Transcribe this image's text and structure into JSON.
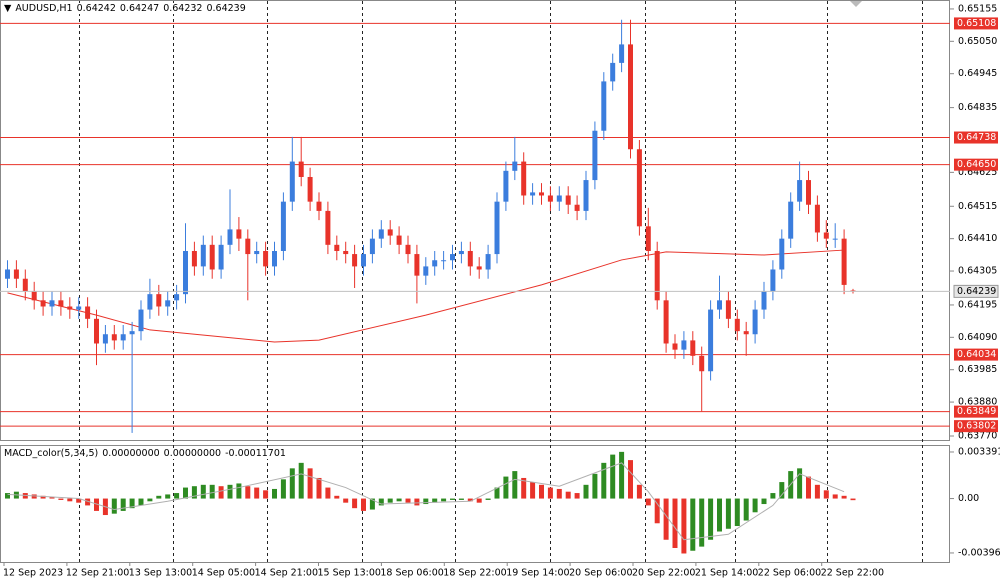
{
  "chart_data": {
    "type": "candlestick",
    "symbol": "AUDUSD,H1",
    "up_color": "#3b7ddd",
    "down_color": "#e8332a",
    "open": [
      0.6428,
      0.6431,
      0.6428,
      0.6424,
      0.6421,
      0.6419,
      0.6421,
      0.6419,
      0.6418,
      0.6419,
      0.6415,
      0.6407,
      0.641,
      0.6408,
      0.641,
      0.6411,
      0.6418,
      0.6423,
      0.6419,
      0.6421,
      0.6423,
      0.6437,
      0.6432,
      0.6439,
      0.6431,
      0.6439,
      0.6444,
      0.6441,
      0.6436,
      0.6437,
      0.6432,
      0.6437,
      0.6453,
      0.6466,
      0.6461,
      0.6453,
      0.645,
      0.6439,
      0.6437,
      0.6436,
      0.6432,
      0.6436,
      0.6441,
      0.6444,
      0.6442,
      0.6439,
      0.6436,
      0.6429,
      0.6432,
      0.6434,
      0.6434,
      0.6436,
      0.6437,
      0.6432,
      0.6431,
      0.6436,
      0.6453,
      0.6463,
      0.6466,
      0.6455,
      0.6456,
      0.6455,
      0.6453,
      0.6455,
      0.6452,
      0.645,
      0.646,
      0.6476,
      0.6492,
      0.6498,
      0.6504,
      0.647,
      0.6445,
      0.6437,
      0.6421,
      0.6407,
      0.6405,
      0.6408,
      0.6403,
      0.6398,
      0.6418,
      0.6421,
      0.6415,
      0.6411,
      0.641,
      0.6418,
      0.6424,
      0.6431,
      0.6441,
      0.6453,
      0.646,
      0.6452,
      0.6443,
      0.6441,
      0.6441,
      0.64242
    ],
    "high": [
      0.6434,
      0.6434,
      0.6431,
      0.6427,
      0.6424,
      0.6424,
      0.6424,
      0.6422,
      0.6422,
      0.6422,
      0.6418,
      0.6413,
      0.6413,
      0.6413,
      0.6414,
      0.6421,
      0.6428,
      0.6426,
      0.6424,
      0.6426,
      0.6446,
      0.644,
      0.6442,
      0.6442,
      0.6442,
      0.6457,
      0.6448,
      0.6444,
      0.644,
      0.644,
      0.644,
      0.6456,
      0.6474,
      0.6474,
      0.6464,
      0.6456,
      0.6453,
      0.6442,
      0.644,
      0.6439,
      0.6439,
      0.6444,
      0.6447,
      0.6447,
      0.6445,
      0.6442,
      0.6439,
      0.6435,
      0.6437,
      0.6437,
      0.6439,
      0.644,
      0.644,
      0.6435,
      0.6439,
      0.6456,
      0.6466,
      0.6474,
      0.6469,
      0.6459,
      0.6459,
      0.6458,
      0.6458,
      0.6458,
      0.6455,
      0.6463,
      0.6479,
      0.6495,
      0.6501,
      0.6512,
      0.6512,
      0.6473,
      0.6451,
      0.644,
      0.6424,
      0.641,
      0.6411,
      0.6411,
      0.6406,
      0.6421,
      0.6429,
      0.6424,
      0.6418,
      0.6414,
      0.6421,
      0.6427,
      0.6434,
      0.6444,
      0.6456,
      0.6466,
      0.6463,
      0.6455,
      0.6447,
      0.6446,
      0.6444,
      0.64247
    ],
    "low": [
      0.6425,
      0.6425,
      0.6421,
      0.6418,
      0.6416,
      0.6416,
      0.6416,
      0.6415,
      0.6415,
      0.6412,
      0.64,
      0.6404,
      0.6405,
      0.6405,
      0.6378,
      0.6408,
      0.6415,
      0.6416,
      0.6416,
      0.6418,
      0.642,
      0.6429,
      0.6429,
      0.6428,
      0.6428,
      0.6436,
      0.6437,
      0.6421,
      0.6433,
      0.6429,
      0.6429,
      0.6434,
      0.645,
      0.6458,
      0.645,
      0.6447,
      0.6436,
      0.6434,
      0.6433,
      0.6425,
      0.6429,
      0.6433,
      0.6438,
      0.6439,
      0.6436,
      0.6433,
      0.642,
      0.6426,
      0.6429,
      0.6431,
      0.6431,
      0.6433,
      0.6429,
      0.6428,
      0.6428,
      0.6433,
      0.645,
      0.646,
      0.6452,
      0.6452,
      0.6452,
      0.645,
      0.645,
      0.6449,
      0.6447,
      0.6447,
      0.6457,
      0.6473,
      0.6489,
      0.6495,
      0.6467,
      0.6442,
      0.6434,
      0.6418,
      0.6404,
      0.6402,
      0.6402,
      0.64,
      0.6385,
      0.6395,
      0.6415,
      0.6412,
      0.6408,
      0.6403,
      0.6407,
      0.6415,
      0.6421,
      0.6428,
      0.6438,
      0.645,
      0.6449,
      0.644,
      0.6438,
      0.6438,
      0.6423,
      0.64232
    ],
    "close": [
      0.6431,
      0.6428,
      0.6424,
      0.6421,
      0.6419,
      0.6421,
      0.6419,
      0.6418,
      0.6419,
      0.6415,
      0.6407,
      0.641,
      0.6408,
      0.641,
      0.6411,
      0.6418,
      0.6423,
      0.6419,
      0.6421,
      0.6423,
      0.6437,
      0.6432,
      0.6439,
      0.6431,
      0.6439,
      0.6444,
      0.6441,
      0.6436,
      0.6437,
      0.6432,
      0.6437,
      0.6453,
      0.6466,
      0.6461,
      0.6453,
      0.645,
      0.6439,
      0.6437,
      0.6436,
      0.6432,
      0.6436,
      0.6441,
      0.6444,
      0.6442,
      0.6439,
      0.6436,
      0.6429,
      0.6432,
      0.6434,
      0.6434,
      0.6436,
      0.6437,
      0.6432,
      0.6431,
      0.6436,
      0.6453,
      0.6463,
      0.6466,
      0.6455,
      0.6456,
      0.6455,
      0.6453,
      0.6455,
      0.6452,
      0.645,
      0.646,
      0.6476,
      0.6492,
      0.6498,
      0.6504,
      0.647,
      0.6445,
      0.6437,
      0.6421,
      0.6407,
      0.6405,
      0.6408,
      0.6403,
      0.6398,
      0.6418,
      0.6421,
      0.6415,
      0.6411,
      0.641,
      0.6418,
      0.6424,
      0.6431,
      0.6441,
      0.6453,
      0.646,
      0.6452,
      0.6443,
      0.6441,
      0.6441,
      0.6426,
      0.64239
    ],
    "ma": {
      "color": "#e8332a",
      "x": [
        0,
        10,
        16,
        30,
        35,
        47,
        60,
        69,
        74,
        85,
        94
      ],
      "values": [
        0.64234,
        0.64162,
        0.64114,
        0.64075,
        0.64081,
        0.64162,
        0.6426,
        0.64341,
        0.64367,
        0.64357,
        0.64373
      ]
    },
    "ylim": [
      0.63757,
      0.65184
    ],
    "yticks": [
      0.65155,
      {
        "value": 0.6505,
        "label": "0.65050"
      },
      0.64945,
      0.64835,
      0.64625,
      0.64515,
      {
        "value": 0.6441,
        "label": "0.64410"
      },
      0.64305,
      0.64195,
      {
        "value": 0.6409,
        "label": "0.64090"
      },
      0.63985,
      {
        "value": 0.6388,
        "label": "0.63880"
      },
      {
        "value": 0.6377,
        "label": "0.63770"
      }
    ],
    "levels": [
      0.65108,
      0.64738,
      {
        "value": 0.6465,
        "label": "0.64650"
      },
      0.64034,
      0.63849,
      {
        "value": 0.63802,
        "label": "0.63802"
      }
    ],
    "level_color": "#e8332a",
    "x_labels": [
      "12 Sep 2023",
      "12 Sep 21:00",
      "13 Sep 13:00",
      "14 Sep 05:00",
      "14 Sep 21:00",
      "15 Sep 13:00",
      "18 Sep 06:00",
      "18 Sep 22:00",
      "19 Sep 14:00",
      "20 Sep 06:00",
      "20 Sep 22:00",
      "21 Sep 14:00",
      "22 Sep 06:00",
      "22 Sep 22:00"
    ],
    "macd": {
      "name": "MACD_color(5,34,5)",
      "header_values": [
        "0.00000000",
        "0.00000000"
      ],
      "up_color": "#2e8b22",
      "down_color": "#e8332a",
      "histogram": [
        0.0004,
        0.0005,
        0.0004,
        0.0003,
        0.0002,
        0.0001,
        -0.0001,
        -0.0002,
        -0.0003,
        -0.0005,
        -0.0009,
        -0.0012,
        -0.0011,
        -0.0009,
        -0.0007,
        -0.0005,
        -0.0002,
        0.0002,
        0.0003,
        0.0004,
        0.0008,
        0.0009,
        0.001,
        0.001,
        0.0009,
        0.001,
        0.0011,
        0.0009,
        0.0008,
        0.0006,
        0.0007,
        0.0014,
        0.0022,
        0.0026,
        0.0022,
        0.0015,
        0.0008,
        0.0002,
        -0.0003,
        -0.0007,
        -0.0009,
        -0.0008,
        -0.0005,
        -0.0003,
        -0.0002,
        -0.0003,
        -0.0005,
        -0.0004,
        -0.0003,
        -0.0002,
        -0.0001,
        -0.0001,
        -0.0002,
        -0.0003,
        -0.0001,
        0.0008,
        0.0016,
        0.002,
        0.0015,
        0.0012,
        0.001,
        0.0008,
        0.0007,
        0.0005,
        0.0004,
        0.001,
        0.0018,
        0.0026,
        0.0032,
        0.0034,
        0.0028,
        0.001,
        -0.0005,
        -0.0018,
        -0.003,
        -0.0036,
        -0.004,
        -0.0038,
        -0.0035,
        -0.003,
        -0.0024,
        -0.0022,
        -0.002,
        -0.0016,
        -0.001,
        -0.0004,
        0.0004,
        0.0012,
        0.002,
        0.0022,
        0.0016,
        0.001,
        0.0006,
        0.0003,
        0.0002,
        -0.00011701
      ],
      "signal": {
        "color": "#b0b0b0",
        "x": [
          0,
          8,
          12,
          18,
          26,
          33,
          38,
          42,
          52,
          57,
          62,
          69,
          72,
          76,
          81,
          86,
          89,
          94
        ],
        "values": [
          0.0003,
          0,
          -0.0008,
          -0.0002,
          0.0008,
          0.0018,
          0.0008,
          -0.0004,
          -0.0002,
          0.0014,
          0.0009,
          0.0026,
          0.0005,
          -0.003,
          -0.0026,
          -0.0005,
          0.0018,
          0.0005
        ]
      },
      "ylim": [
        -0.00462,
        0.0039
      ],
      "yticks": [
        0.0033914,
        {
          "value": 0,
          "label": "0.00"
        },
        -0.003961
      ]
    }
  }
}
